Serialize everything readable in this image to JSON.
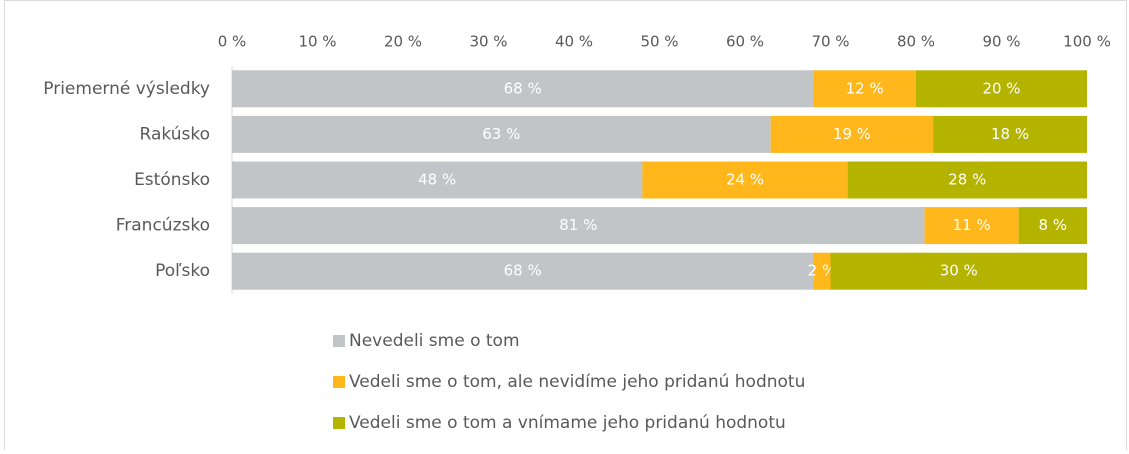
{
  "chart_data": {
    "type": "stacked_bar_horizontal",
    "categories": [
      "Priemerné výsledky",
      "Rakúsko",
      "Estónsko",
      "Francúzsko",
      "Poľsko"
    ],
    "series": [
      {
        "name": "Nevedeli sme o tom",
        "color": "#c2c5c7",
        "values": [
          68,
          63,
          48,
          81,
          68
        ],
        "value_labels": [
          "68 %",
          "63 %",
          "48 %",
          "81 %",
          "68 %"
        ]
      },
      {
        "name": "Vedeli sme o tom, ale nevidíme jeho pridanú hodnotu",
        "color": "#ffb71b",
        "values": [
          12,
          19,
          24,
          11,
          2
        ],
        "value_labels": [
          "12 %",
          "19 %",
          "24 %",
          "11 %",
          "2 %"
        ]
      },
      {
        "name": "Vedeli sme o tom a vnímame jeho pridanú hodnotu",
        "color": "#b3b300",
        "values": [
          20,
          18,
          28,
          8,
          30
        ],
        "value_labels": [
          "20 %",
          "18 %",
          "28 %",
          "8 %",
          "30 %"
        ]
      }
    ],
    "xlim": [
      0,
      100
    ],
    "xticks": [
      {
        "value": 0,
        "label": "0 %"
      },
      {
        "value": 10,
        "label": "10 %"
      },
      {
        "value": 20,
        "label": "20 %"
      },
      {
        "value": 30,
        "label": "30 %"
      },
      {
        "value": 40,
        "label": "40 %"
      },
      {
        "value": 50,
        "label": "50 %"
      },
      {
        "value": 60,
        "label": "60 %"
      },
      {
        "value": 70,
        "label": "70 %"
      },
      {
        "value": 80,
        "label": "80 %"
      },
      {
        "value": 90,
        "label": "90 %"
      },
      {
        "value": 100,
        "label": "100 %"
      }
    ],
    "legend": "bottom"
  }
}
